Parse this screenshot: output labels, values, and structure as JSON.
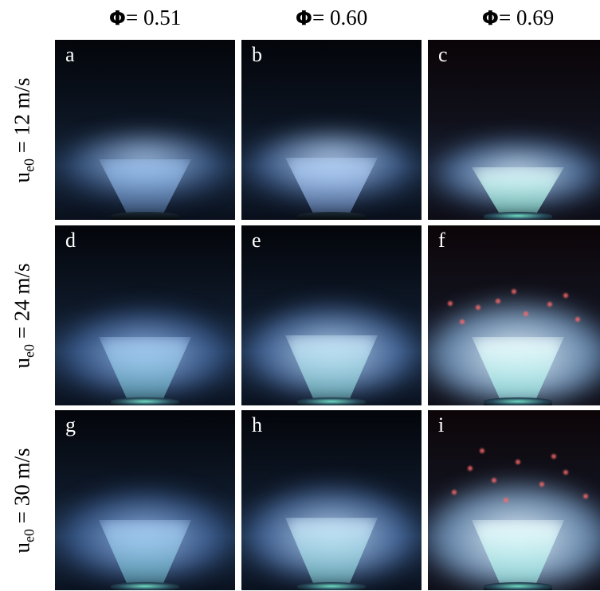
{
  "columns": [
    {
      "symbol": "Φ",
      "value": "= 0.51"
    },
    {
      "symbol": "Φ",
      "value": "= 0.60"
    },
    {
      "symbol": "Φ",
      "value": "= 0.69"
    }
  ],
  "rows": [
    {
      "var": "u",
      "sub": "e0",
      "value": " = 12 m/s"
    },
    {
      "var": "u",
      "sub": "e0",
      "value": " = 24 m/s"
    },
    {
      "var": "u",
      "sub": "e0",
      "value": " = 30 m/s"
    }
  ],
  "panels": [
    "a",
    "b",
    "c",
    "d",
    "e",
    "f",
    "g",
    "h",
    "i"
  ],
  "colors": {
    "background": "#ffffff",
    "panel_bg": "#03050a",
    "flame_blue": "#7fb2ff",
    "flame_core": "#dff6ff",
    "ember_red": "#ff6b6b",
    "base_green": "#6fdcc4"
  }
}
